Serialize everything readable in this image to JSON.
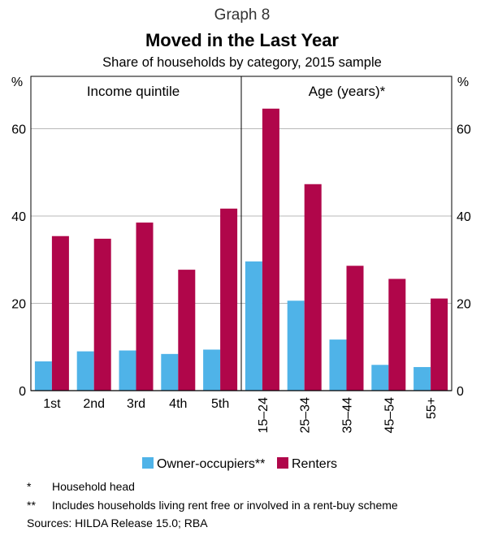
{
  "header": {
    "graph_number": "Graph 8",
    "title": "Moved in the Last Year",
    "subtitle": "Share of households by category, 2015 sample"
  },
  "chart_data": {
    "type": "bar",
    "y_unit": "%",
    "ylim": [
      0,
      72
    ],
    "yticks": [
      0,
      20,
      40,
      60
    ],
    "grid": true,
    "legend_position": "bottom",
    "colors": {
      "owner": "#4fb3e8",
      "renter": "#b0064a",
      "grid": "#b8b8b8",
      "frame": "#000000"
    },
    "series_names": [
      "Owner-occupiers**",
      "Renters"
    ],
    "panels": [
      {
        "label": "Income quintile",
        "categories": [
          "1st",
          "2nd",
          "3rd",
          "4th",
          "5th"
        ],
        "owner": [
          6.7,
          9.0,
          9.2,
          8.4,
          9.4
        ],
        "renter": [
          35.4,
          34.8,
          38.5,
          27.7,
          41.7
        ],
        "rotate_labels": false
      },
      {
        "label": "Age (years)*",
        "categories": [
          "15–24",
          "25–34",
          "35–44",
          "45–54",
          "55+"
        ],
        "owner": [
          29.6,
          20.6,
          11.7,
          5.9,
          5.4
        ],
        "renter": [
          64.6,
          47.3,
          28.6,
          25.6,
          21.1
        ],
        "rotate_labels": true
      }
    ]
  },
  "notes": [
    {
      "mark": "*",
      "text": "Household head"
    },
    {
      "mark": "**",
      "text": "Includes households living rent free or involved in a rent-buy scheme"
    }
  ],
  "sources": "Sources:  HILDA Release 15.0; RBA"
}
